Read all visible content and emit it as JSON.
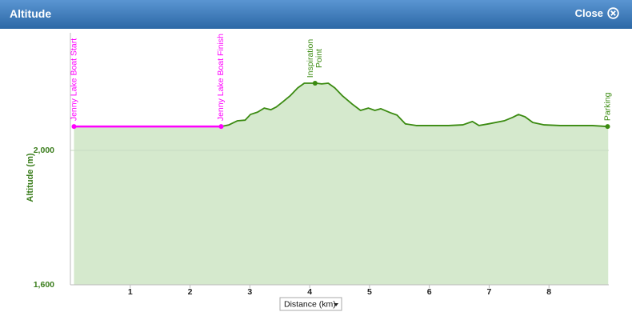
{
  "header": {
    "title": "Altitude",
    "close": "Close"
  },
  "chart_data": {
    "type": "area",
    "ylabel": "Altitude (m)",
    "xlabel": "Distance (km)",
    "xlim": [
      0,
      9
    ],
    "ylim": [
      1600,
      2350
    ],
    "xticks": [
      1,
      2,
      3,
      4,
      5,
      6,
      7,
      8
    ],
    "yticks": [
      {
        "value": 1600,
        "label": "1,600"
      },
      {
        "value": 2000,
        "label": "2,000"
      }
    ],
    "grid": true,
    "fill_color": "#d5e9cd",
    "series": [
      {
        "color": "#ff00ff",
        "x": [
          0.06,
          2.52
        ],
        "values": [
          2071,
          2071
        ]
      },
      {
        "color": "#3a8a10",
        "x": [
          2.52,
          2.65,
          2.79,
          2.92,
          3.01,
          3.13,
          3.24,
          3.35,
          3.44,
          3.54,
          3.67,
          3.8,
          3.91,
          4.02,
          4.11,
          4.2,
          4.31,
          4.42,
          4.55,
          4.71,
          4.85,
          4.98,
          5.09,
          5.19,
          5.35,
          5.46,
          5.6,
          5.78,
          6.05,
          6.32,
          6.56,
          6.72,
          6.83,
          6.99,
          7.25,
          7.39,
          7.49,
          7.6,
          7.73,
          7.92,
          8.19,
          8.46,
          8.72,
          8.99
        ],
        "values": [
          2071,
          2076,
          2088,
          2090,
          2107,
          2114,
          2126,
          2121,
          2129,
          2143,
          2162,
          2186,
          2200,
          2200,
          2200,
          2198,
          2200,
          2186,
          2162,
          2138,
          2119,
          2126,
          2119,
          2124,
          2112,
          2105,
          2079,
          2074,
          2074,
          2074,
          2076,
          2086,
          2074,
          2079,
          2088,
          2098,
          2107,
          2100,
          2083,
          2076,
          2074,
          2074,
          2074,
          2071
        ]
      }
    ],
    "annotations": [
      {
        "lines": [
          "Jenny Lake Boat Start"
        ],
        "x": 0.06,
        "y": 2071,
        "color": "#ff00ff"
      },
      {
        "lines": [
          "Jenny Lake Boat Finish"
        ],
        "x": 2.52,
        "y": 2071,
        "color": "#ff00ff"
      },
      {
        "lines": [
          "Inspiration",
          "Point"
        ],
        "x": 4.09,
        "y": 2200,
        "color": "#3a8a10"
      },
      {
        "lines": [
          "Parking"
        ],
        "x": 8.98,
        "y": 2071,
        "color": "#3a8a10"
      }
    ]
  }
}
